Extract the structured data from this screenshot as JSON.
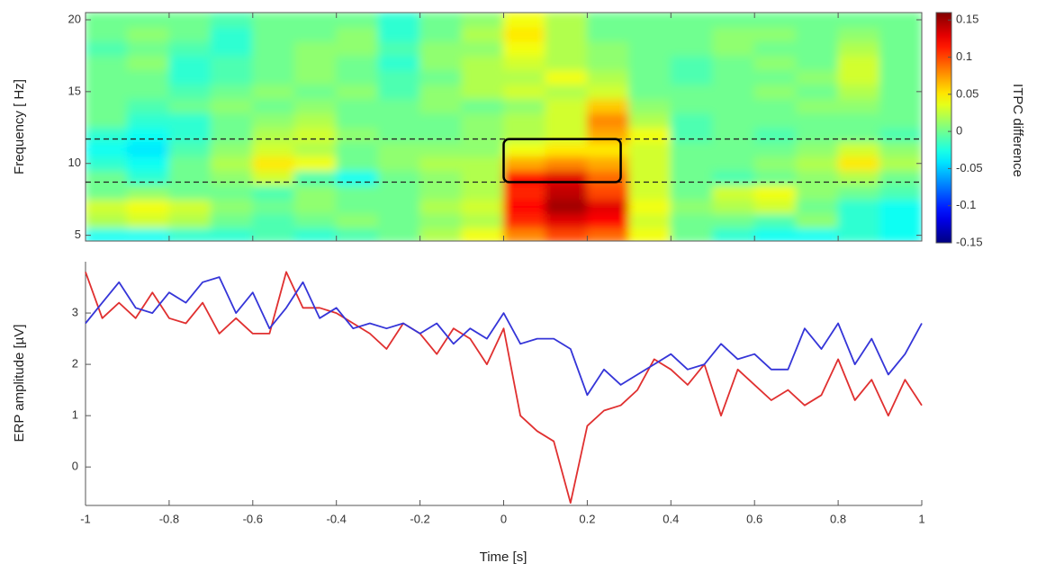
{
  "chart_data": [
    {
      "type": "heatmap",
      "ylabel": "Frequency [ Hz]",
      "colorbar_label": "ITPC difference",
      "colormap": "jet",
      "x": [
        -0.95,
        -0.85,
        -0.75,
        -0.65,
        -0.55,
        -0.45,
        -0.35,
        -0.25,
        -0.15,
        -0.05,
        0.05,
        0.15,
        0.25,
        0.35,
        0.45,
        0.55,
        0.65,
        0.75,
        0.85,
        0.95
      ],
      "y": [
        5,
        6,
        7,
        8,
        9,
        10,
        11,
        12,
        13,
        14,
        15,
        16,
        17,
        18,
        19,
        20
      ],
      "z": [
        [
          -0.03,
          -0.03,
          -0.02,
          -0.02,
          -0.01,
          -0.02,
          -0.01,
          0.0,
          0.02,
          0.04,
          0.08,
          0.1,
          0.09,
          0.04,
          0.0,
          -0.02,
          -0.03,
          -0.03,
          -0.02,
          -0.03
        ],
        [
          0.02,
          0.03,
          0.02,
          0.0,
          -0.01,
          0.0,
          0.01,
          0.0,
          0.01,
          0.02,
          0.11,
          0.13,
          0.12,
          0.03,
          0.0,
          0.0,
          -0.01,
          0.01,
          -0.02,
          -0.03
        ],
        [
          0.03,
          0.04,
          0.03,
          0.01,
          0.0,
          0.01,
          0.0,
          0.0,
          0.02,
          0.03,
          0.12,
          0.15,
          0.13,
          0.04,
          0.01,
          0.02,
          0.03,
          0.0,
          -0.02,
          -0.03
        ],
        [
          0.0,
          0.01,
          0.0,
          0.0,
          -0.01,
          0.01,
          0.0,
          0.0,
          0.01,
          0.02,
          0.11,
          0.14,
          0.1,
          0.03,
          0.0,
          0.03,
          0.04,
          0.01,
          0.0,
          -0.01
        ],
        [
          0.0,
          -0.02,
          0.0,
          0.01,
          0.03,
          -0.01,
          -0.03,
          0.0,
          0.01,
          0.02,
          0.12,
          0.13,
          0.09,
          0.03,
          0.0,
          -0.01,
          0.0,
          0.01,
          0.02,
          0.0
        ],
        [
          -0.02,
          -0.03,
          0.0,
          0.02,
          0.05,
          0.04,
          0.0,
          0.01,
          0.02,
          0.02,
          0.07,
          0.08,
          0.07,
          0.03,
          0.0,
          0.0,
          0.01,
          0.02,
          0.05,
          0.02
        ],
        [
          -0.03,
          -0.04,
          -0.01,
          0.01,
          0.03,
          0.02,
          0.0,
          0.01,
          0.01,
          0.01,
          0.04,
          0.05,
          0.05,
          0.03,
          0.0,
          0.0,
          0.0,
          0.01,
          0.03,
          0.01
        ],
        [
          -0.02,
          -0.03,
          -0.02,
          0.0,
          0.02,
          0.03,
          0.01,
          0.0,
          0.0,
          0.01,
          0.02,
          0.03,
          0.07,
          0.04,
          -0.01,
          0.0,
          -0.01,
          0.0,
          0.0,
          -0.01
        ],
        [
          0.0,
          -0.02,
          -0.02,
          0.0,
          0.01,
          0.02,
          0.0,
          0.0,
          0.0,
          0.01,
          0.02,
          0.03,
          0.08,
          0.02,
          -0.01,
          0.0,
          0.0,
          0.0,
          0.0,
          0.0
        ],
        [
          0.0,
          -0.01,
          0.0,
          0.01,
          0.0,
          0.01,
          0.0,
          0.0,
          0.01,
          0.0,
          0.01,
          0.03,
          0.06,
          0.01,
          0.0,
          0.0,
          0.0,
          0.01,
          0.01,
          0.0
        ],
        [
          0.0,
          0.0,
          -0.01,
          0.0,
          0.01,
          0.0,
          0.01,
          -0.01,
          0.01,
          0.02,
          0.03,
          0.02,
          0.03,
          0.0,
          0.0,
          0.0,
          0.01,
          0.0,
          0.02,
          0.0
        ],
        [
          0.0,
          0.0,
          -0.02,
          -0.01,
          0.0,
          0.01,
          0.0,
          -0.01,
          0.0,
          0.02,
          0.02,
          0.04,
          0.02,
          0.0,
          -0.01,
          0.0,
          0.0,
          0.01,
          0.03,
          0.0
        ],
        [
          0.0,
          0.01,
          -0.02,
          -0.01,
          0.0,
          0.01,
          0.0,
          -0.02,
          0.01,
          0.02,
          0.03,
          0.02,
          0.01,
          0.0,
          -0.01,
          0.0,
          0.01,
          0.0,
          0.03,
          0.0
        ],
        [
          -0.01,
          0.0,
          -0.01,
          -0.02,
          0.0,
          0.01,
          0.01,
          -0.01,
          0.01,
          0.01,
          0.04,
          0.02,
          0.01,
          0.0,
          0.0,
          0.01,
          0.0,
          0.0,
          0.02,
          0.0
        ],
        [
          0.0,
          0.01,
          0.0,
          -0.02,
          0.0,
          0.0,
          0.01,
          -0.02,
          0.0,
          0.02,
          0.05,
          0.02,
          0.0,
          0.0,
          0.0,
          0.01,
          0.01,
          0.0,
          0.01,
          0.0
        ],
        [
          0.0,
          0.0,
          0.0,
          -0.01,
          0.0,
          0.0,
          0.0,
          -0.02,
          0.0,
          0.01,
          0.04,
          0.02,
          0.0,
          0.0,
          0.0,
          0.0,
          0.0,
          0.0,
          0.0,
          0.0
        ]
      ],
      "xlim": [
        -1,
        1
      ],
      "xticks": [
        -1,
        -0.8,
        -0.6,
        -0.4,
        -0.2,
        0,
        0.2,
        0.4,
        0.6,
        0.8,
        1
      ],
      "ylim": [
        4.6,
        20.5
      ],
      "yticks": [
        5,
        10,
        15,
        20
      ],
      "clim": [
        -0.15,
        0.16
      ],
      "cticks": [
        0.15,
        0.1,
        0.05,
        0,
        -0.05,
        -0.1,
        -0.15
      ],
      "hlines": [
        8.7,
        11.7
      ],
      "box": {
        "x": [
          0,
          0.28
        ],
        "y": [
          8.7,
          11.7
        ]
      }
    },
    {
      "type": "line",
      "xlabel": "Time [s]",
      "ylabel": "ERP amplitude [µV]",
      "x": [
        -1,
        -0.96,
        -0.92,
        -0.88,
        -0.84,
        -0.8,
        -0.76,
        -0.72,
        -0.68,
        -0.64,
        -0.6,
        -0.56,
        -0.52,
        -0.48,
        -0.44,
        -0.4,
        -0.36,
        -0.32,
        -0.28,
        -0.24,
        -0.2,
        -0.16,
        -0.12,
        -0.08,
        -0.04,
        0,
        0.04,
        0.08,
        0.12,
        0.16,
        0.2,
        0.24,
        0.28,
        0.32,
        0.36,
        0.4,
        0.44,
        0.48,
        0.52,
        0.56,
        0.6,
        0.64,
        0.68,
        0.72,
        0.76,
        0.8,
        0.84,
        0.88,
        0.92,
        0.96,
        1
      ],
      "series": [
        {
          "color": "#e03030",
          "values": [
            3.8,
            2.9,
            3.2,
            2.9,
            3.4,
            2.9,
            2.8,
            3.2,
            2.6,
            2.9,
            2.6,
            2.6,
            3.8,
            3.1,
            3.1,
            3.0,
            2.8,
            2.6,
            2.3,
            2.8,
            2.6,
            2.2,
            2.7,
            2.5,
            2.0,
            2.7,
            1.0,
            0.7,
            0.5,
            -0.7,
            0.8,
            1.1,
            1.2,
            1.5,
            2.1,
            1.9,
            1.6,
            2.0,
            1.0,
            1.9,
            1.6,
            1.3,
            1.5,
            1.2,
            1.4,
            2.1,
            1.3,
            1.7,
            1.0,
            1.7,
            1.2
          ]
        },
        {
          "color": "#3535d8",
          "values": [
            2.8,
            3.2,
            3.6,
            3.1,
            3.0,
            3.4,
            3.2,
            3.6,
            3.7,
            3.0,
            3.4,
            2.7,
            3.1,
            3.6,
            2.9,
            3.1,
            2.7,
            2.8,
            2.7,
            2.8,
            2.6,
            2.8,
            2.4,
            2.7,
            2.5,
            3.0,
            2.4,
            2.5,
            2.5,
            2.3,
            1.4,
            1.9,
            1.6,
            1.8,
            2.0,
            2.2,
            1.9,
            2.0,
            2.4,
            2.1,
            2.2,
            1.9,
            1.9,
            2.7,
            2.3,
            2.8,
            2.0,
            2.5,
            1.8,
            2.2,
            2.8
          ]
        }
      ],
      "xlim": [
        -1,
        1
      ],
      "xticks": [
        -1,
        -0.8,
        -0.6,
        -0.4,
        -0.2,
        0,
        0.2,
        0.4,
        0.6,
        0.8,
        1
      ],
      "ylim": [
        -0.75,
        4
      ],
      "yticks": [
        0,
        1,
        2,
        3
      ]
    }
  ]
}
